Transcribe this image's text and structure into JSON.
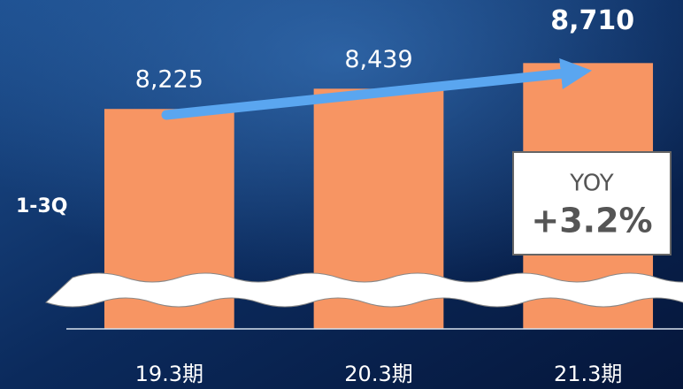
{
  "chart_data": {
    "type": "bar",
    "categories": [
      "19.3期",
      "20.3期",
      "21.3期"
    ],
    "values": [
      8225,
      8439,
      8710
    ],
    "value_labels": [
      "8,225",
      "8,439",
      "8,710"
    ],
    "color": "#f79563",
    "ylim": [
      5900,
      8900
    ],
    "axis_break": true,
    "highlight_index": 2,
    "series_label": "1-3Q",
    "annotation": {
      "label": "YOY",
      "value": "+3.2%"
    }
  }
}
